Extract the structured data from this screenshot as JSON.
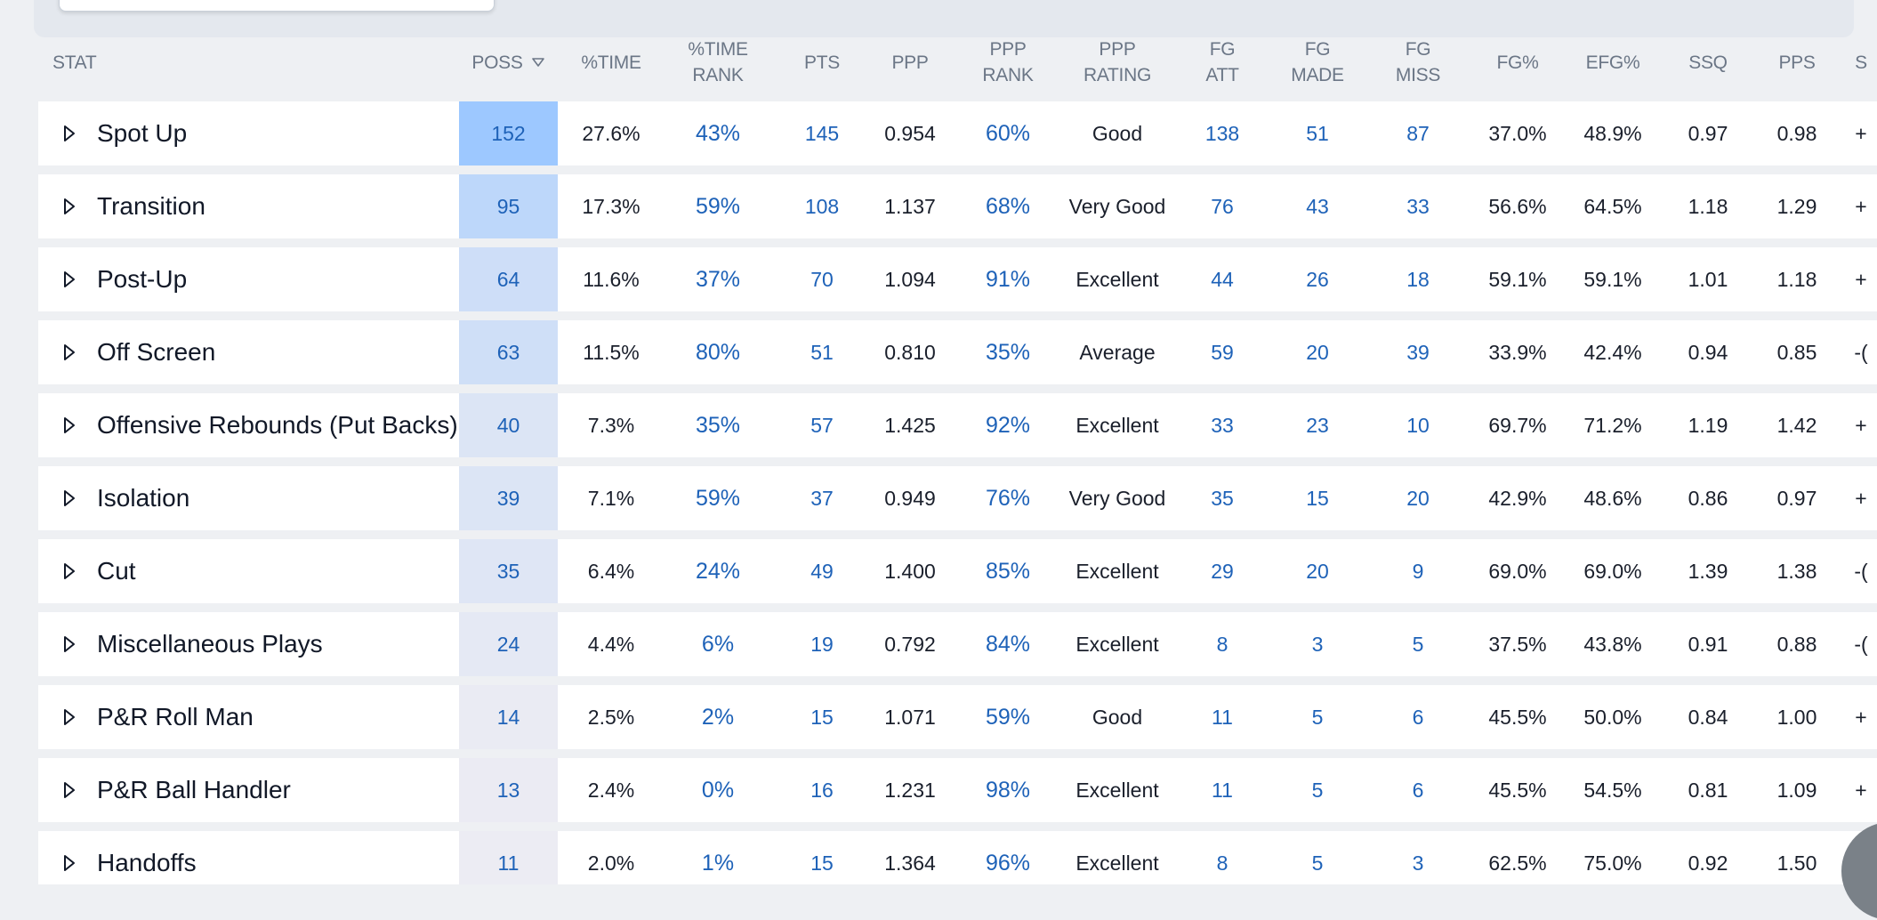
{
  "header": {
    "stat": "STAT",
    "poss": "POSS",
    "pct_time": "%TIME",
    "pct_time_rank": "%TIME\nRANK",
    "pts": "PTS",
    "ppp": "PPP",
    "ppp_rank": "PPP\nRANK",
    "ppp_rating": "PPP\nRATING",
    "fg_att": "FG\nATT",
    "fg_made": "FG\nMADE",
    "fg_miss": "FG\nMISS",
    "fg_pct": "FG%",
    "efg_pct": "EFG%",
    "ssq": "SSQ",
    "pps": "PPS",
    "last": "S"
  },
  "icons": {
    "sort": "sort-down-triangle-icon",
    "expand": "expand-triangle-icon"
  },
  "colors": {
    "poss_max": "#9dc8ff",
    "poss_min": "#ececf3",
    "link": "#1e62b8"
  },
  "rows": [
    {
      "stat": "Spot Up",
      "poss": "152",
      "pct_time": "27.6%",
      "pct_time_rank": "43%",
      "pts": "145",
      "ppp": "0.954",
      "ppp_rank": "60%",
      "ppp_rating": "Good",
      "fg_att": "138",
      "fg_made": "51",
      "fg_miss": "87",
      "fg_pct": "37.0%",
      "efg_pct": "48.9%",
      "ssq": "0.97",
      "pps": "0.98",
      "last": "+"
    },
    {
      "stat": "Transition",
      "poss": "95",
      "pct_time": "17.3%",
      "pct_time_rank": "59%",
      "pts": "108",
      "ppp": "1.137",
      "ppp_rank": "68%",
      "ppp_rating": "Very Good",
      "fg_att": "76",
      "fg_made": "43",
      "fg_miss": "33",
      "fg_pct": "56.6%",
      "efg_pct": "64.5%",
      "ssq": "1.18",
      "pps": "1.29",
      "last": "+"
    },
    {
      "stat": "Post-Up",
      "poss": "64",
      "pct_time": "11.6%",
      "pct_time_rank": "37%",
      "pts": "70",
      "ppp": "1.094",
      "ppp_rank": "91%",
      "ppp_rating": "Excellent",
      "fg_att": "44",
      "fg_made": "26",
      "fg_miss": "18",
      "fg_pct": "59.1%",
      "efg_pct": "59.1%",
      "ssq": "1.01",
      "pps": "1.18",
      "last": "+"
    },
    {
      "stat": "Off Screen",
      "poss": "63",
      "pct_time": "11.5%",
      "pct_time_rank": "80%",
      "pts": "51",
      "ppp": "0.810",
      "ppp_rank": "35%",
      "ppp_rating": "Average",
      "fg_att": "59",
      "fg_made": "20",
      "fg_miss": "39",
      "fg_pct": "33.9%",
      "efg_pct": "42.4%",
      "ssq": "0.94",
      "pps": "0.85",
      "last": "-("
    },
    {
      "stat": "Offensive Rebounds (Put Backs)",
      "poss": "40",
      "pct_time": "7.3%",
      "pct_time_rank": "35%",
      "pts": "57",
      "ppp": "1.425",
      "ppp_rank": "92%",
      "ppp_rating": "Excellent",
      "fg_att": "33",
      "fg_made": "23",
      "fg_miss": "10",
      "fg_pct": "69.7%",
      "efg_pct": "71.2%",
      "ssq": "1.19",
      "pps": "1.42",
      "last": "+"
    },
    {
      "stat": "Isolation",
      "poss": "39",
      "pct_time": "7.1%",
      "pct_time_rank": "59%",
      "pts": "37",
      "ppp": "0.949",
      "ppp_rank": "76%",
      "ppp_rating": "Very Good",
      "fg_att": "35",
      "fg_made": "15",
      "fg_miss": "20",
      "fg_pct": "42.9%",
      "efg_pct": "48.6%",
      "ssq": "0.86",
      "pps": "0.97",
      "last": "+"
    },
    {
      "stat": "Cut",
      "poss": "35",
      "pct_time": "6.4%",
      "pct_time_rank": "24%",
      "pts": "49",
      "ppp": "1.400",
      "ppp_rank": "85%",
      "ppp_rating": "Excellent",
      "fg_att": "29",
      "fg_made": "20",
      "fg_miss": "9",
      "fg_pct": "69.0%",
      "efg_pct": "69.0%",
      "ssq": "1.39",
      "pps": "1.38",
      "last": "-("
    },
    {
      "stat": "Miscellaneous Plays",
      "poss": "24",
      "pct_time": "4.4%",
      "pct_time_rank": "6%",
      "pts": "19",
      "ppp": "0.792",
      "ppp_rank": "84%",
      "ppp_rating": "Excellent",
      "fg_att": "8",
      "fg_made": "3",
      "fg_miss": "5",
      "fg_pct": "37.5%",
      "efg_pct": "43.8%",
      "ssq": "0.91",
      "pps": "0.88",
      "last": "-("
    },
    {
      "stat": "P&R Roll Man",
      "poss": "14",
      "pct_time": "2.5%",
      "pct_time_rank": "2%",
      "pts": "15",
      "ppp": "1.071",
      "ppp_rank": "59%",
      "ppp_rating": "Good",
      "fg_att": "11",
      "fg_made": "5",
      "fg_miss": "6",
      "fg_pct": "45.5%",
      "efg_pct": "50.0%",
      "ssq": "0.84",
      "pps": "1.00",
      "last": "+"
    },
    {
      "stat": "P&R Ball Handler",
      "poss": "13",
      "pct_time": "2.4%",
      "pct_time_rank": "0%",
      "pts": "16",
      "ppp": "1.231",
      "ppp_rank": "98%",
      "ppp_rating": "Excellent",
      "fg_att": "11",
      "fg_made": "5",
      "fg_miss": "6",
      "fg_pct": "45.5%",
      "efg_pct": "54.5%",
      "ssq": "0.81",
      "pps": "1.09",
      "last": "+"
    },
    {
      "stat": "Handoffs",
      "poss": "11",
      "pct_time": "2.0%",
      "pct_time_rank": "1%",
      "pts": "15",
      "ppp": "1.364",
      "ppp_rank": "96%",
      "ppp_rating": "Excellent",
      "fg_att": "8",
      "fg_made": "5",
      "fg_miss": "3",
      "fg_pct": "62.5%",
      "efg_pct": "75.0%",
      "ssq": "0.92",
      "pps": "1.50",
      "last": ""
    }
  ]
}
